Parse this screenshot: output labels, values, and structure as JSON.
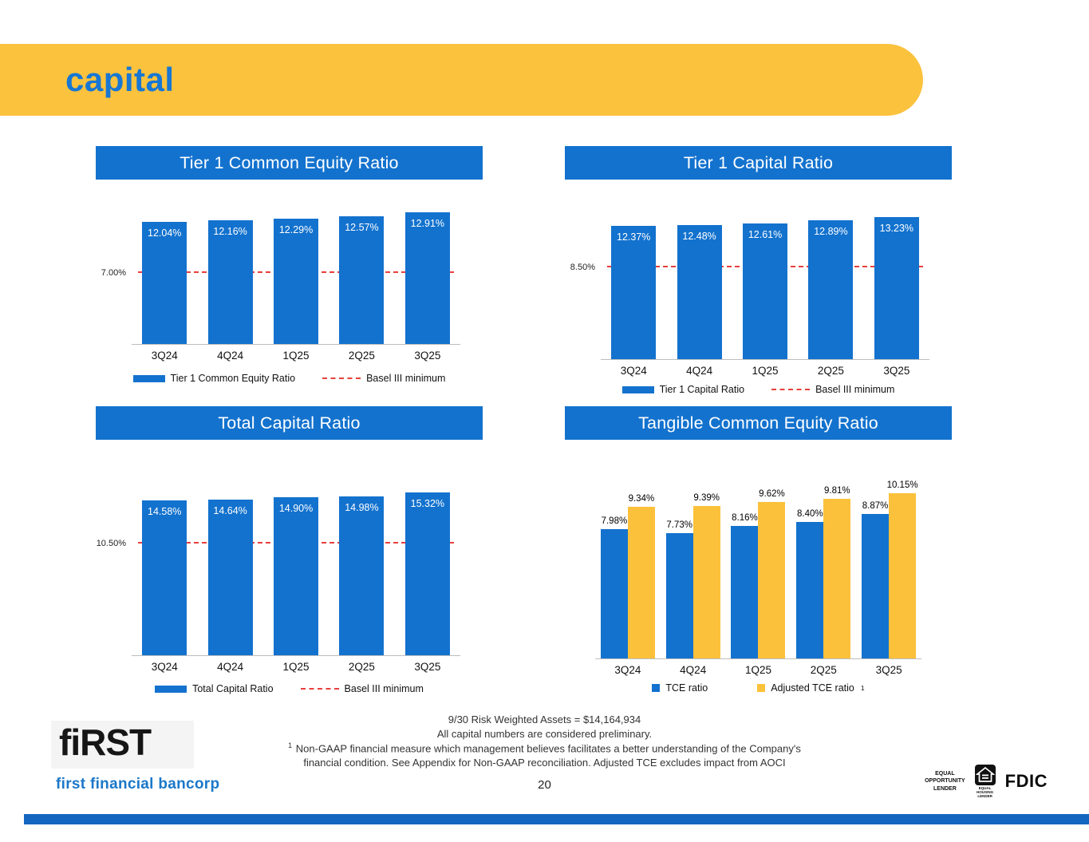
{
  "header": {
    "title": "capital"
  },
  "colors": {
    "bar_blue": "#1372CE",
    "bar_yellow": "#FCC13B",
    "banner_yellow": "#FBC23D",
    "reference_red": "#E8403C",
    "bottom_bar_blue": "#1566C0",
    "title_blue": "#1777D3"
  },
  "chart_data": [
    {
      "type": "bar",
      "title": "Tier 1 Common Equity Ratio",
      "categories": [
        "3Q24",
        "4Q24",
        "1Q25",
        "2Q25",
        "3Q25"
      ],
      "series": [
        {
          "name": "Tier 1 Common Equity Ratio",
          "color": "#1372CE",
          "values": [
            12.04,
            12.16,
            12.29,
            12.57,
            12.91
          ],
          "labels": [
            "12.04%",
            "12.16%",
            "12.29%",
            "12.57%",
            "12.91%"
          ]
        }
      ],
      "reference_line": {
        "name": "Basel III minimum",
        "value": 7.0,
        "label": "7.00%",
        "color": "#E8403C",
        "style": "dashed"
      },
      "ylim": [
        0,
        16
      ],
      "label_position": "inside",
      "legend_position": "bottom",
      "grid": false
    },
    {
      "type": "bar",
      "title": "Tier 1 Capital Ratio",
      "categories": [
        "3Q24",
        "4Q24",
        "1Q25",
        "2Q25",
        "3Q25"
      ],
      "series": [
        {
          "name": "Tier 1 Capital Ratio",
          "color": "#1372CE",
          "values": [
            12.37,
            12.48,
            12.61,
            12.89,
            13.23
          ],
          "labels": [
            "12.37%",
            "12.48%",
            "12.61%",
            "12.89%",
            "13.23%"
          ]
        }
      ],
      "reference_line": {
        "name": "Basel III minimum",
        "value": 8.5,
        "label": "8.50%",
        "color": "#E8403C",
        "style": "dashed"
      },
      "ylim": [
        0,
        15.5
      ],
      "label_position": "inside",
      "legend_position": "bottom",
      "grid": false
    },
    {
      "type": "bar",
      "title": "Total Capital Ratio",
      "categories": [
        "3Q24",
        "4Q24",
        "1Q25",
        "2Q25",
        "3Q25"
      ],
      "series": [
        {
          "name": "Total Capital Ratio",
          "color": "#1372CE",
          "values": [
            14.58,
            14.64,
            14.9,
            14.98,
            15.32
          ],
          "labels": [
            "14.58%",
            "14.64%",
            "14.90%",
            "14.98%",
            "15.32%"
          ]
        }
      ],
      "reference_line": {
        "name": "Basel III minimum",
        "value": 10.5,
        "label": "10.50%",
        "color": "#E8403C",
        "style": "dashed"
      },
      "ylim": [
        0,
        16.1
      ],
      "label_position": "inside",
      "legend_position": "bottom",
      "grid": false
    },
    {
      "type": "bar",
      "title": "Tangible Common Equity Ratio",
      "categories": [
        "3Q24",
        "4Q24",
        "1Q25",
        "2Q25",
        "3Q25"
      ],
      "series": [
        {
          "name": "TCE ratio",
          "color": "#1372CE",
          "values": [
            7.98,
            7.73,
            8.16,
            8.4,
            8.87
          ],
          "labels": [
            "7.98%",
            "7.73%",
            "8.16%",
            "8.40%",
            "8.87%"
          ]
        },
        {
          "name": "Adjusted TCE ratio",
          "legend_superscript": "1",
          "color": "#FCC13B",
          "values": [
            9.34,
            9.39,
            9.62,
            9.81,
            10.15
          ],
          "labels": [
            "9.34%",
            "9.39%",
            "9.62%",
            "9.81%",
            "10.15%"
          ]
        }
      ],
      "ylim": [
        0,
        11
      ],
      "label_position": "above",
      "legend_position": "bottom",
      "grid": false
    }
  ],
  "footer": {
    "notes": [
      {
        "sup": "",
        "text": "9/30 Risk Weighted Assets = $14,164,934"
      },
      {
        "sup": "",
        "text": "All capital numbers are considered preliminary."
      },
      {
        "sup": "1",
        "text": " Non-GAAP financial measure which management believes facilitates a better understanding of the Company's financial condition.  See Appendix for Non-GAAP reconciliation.  Adjusted TCE excludes impact from AOCI"
      }
    ],
    "page_number": "20",
    "logo": {
      "wordmark": "fiRST",
      "subtitle": "first financial bancorp"
    },
    "badges": {
      "equal_opportunity": [
        "EQUAL",
        "OPPORTUNITY",
        "LENDER"
      ],
      "equal_housing": "EQUAL HOUSING LENDER",
      "fdic": "FDIC"
    }
  }
}
